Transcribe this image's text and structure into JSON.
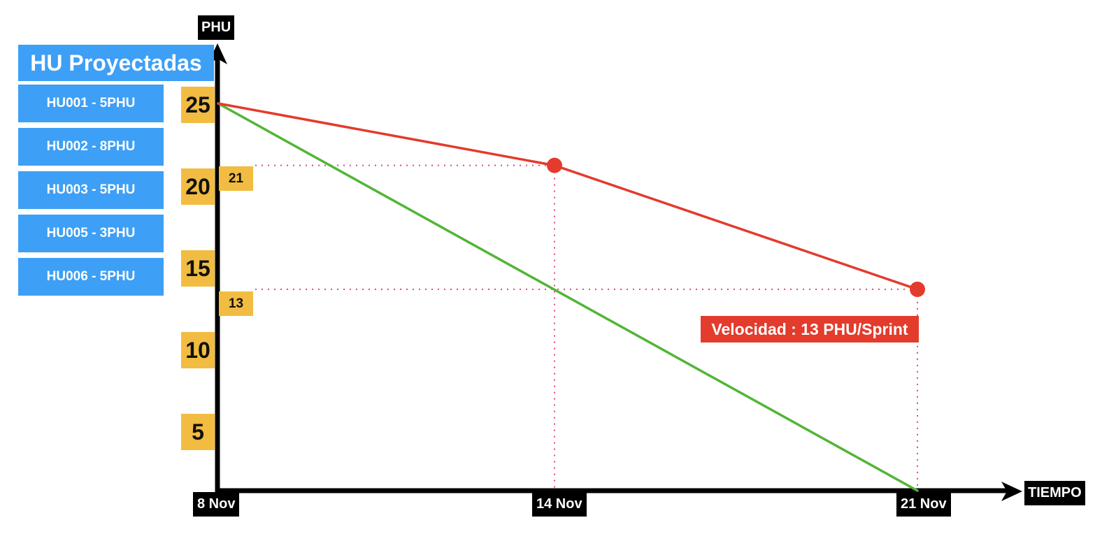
{
  "legend": {
    "title": "HU Proyectadas",
    "items": [
      "HU001 - 5PHU",
      "HU002 - 8PHU",
      "HU003 - 5PHU",
      "HU005 - 3PHU",
      "HU006 - 5PHU"
    ]
  },
  "annotation": {
    "velocity": "Velocidad : 13 PHU/Sprint"
  },
  "colors": {
    "ideal": "#52b536",
    "actual": "#e33b2c",
    "guides": "#e0487a",
    "tick_bg": "#f1bc41",
    "legend_bg": "#3d9ff5"
  },
  "chart_data": {
    "type": "line",
    "title": "",
    "xlabel": "TIEMPO",
    "ylabel": "PHU",
    "categories": [
      "8 Nov",
      "14 Nov",
      "21 Nov"
    ],
    "yticks": [
      "5",
      "10",
      "15",
      "20",
      "25"
    ],
    "ylim": [
      0,
      25
    ],
    "grid": false,
    "series": [
      {
        "color": "#52b536",
        "values": [
          25,
          null,
          0
        ]
      },
      {
        "color": "#e33b2c",
        "values": [
          25,
          21,
          13
        ]
      }
    ],
    "point_labels": [
      "21",
      "13"
    ]
  }
}
